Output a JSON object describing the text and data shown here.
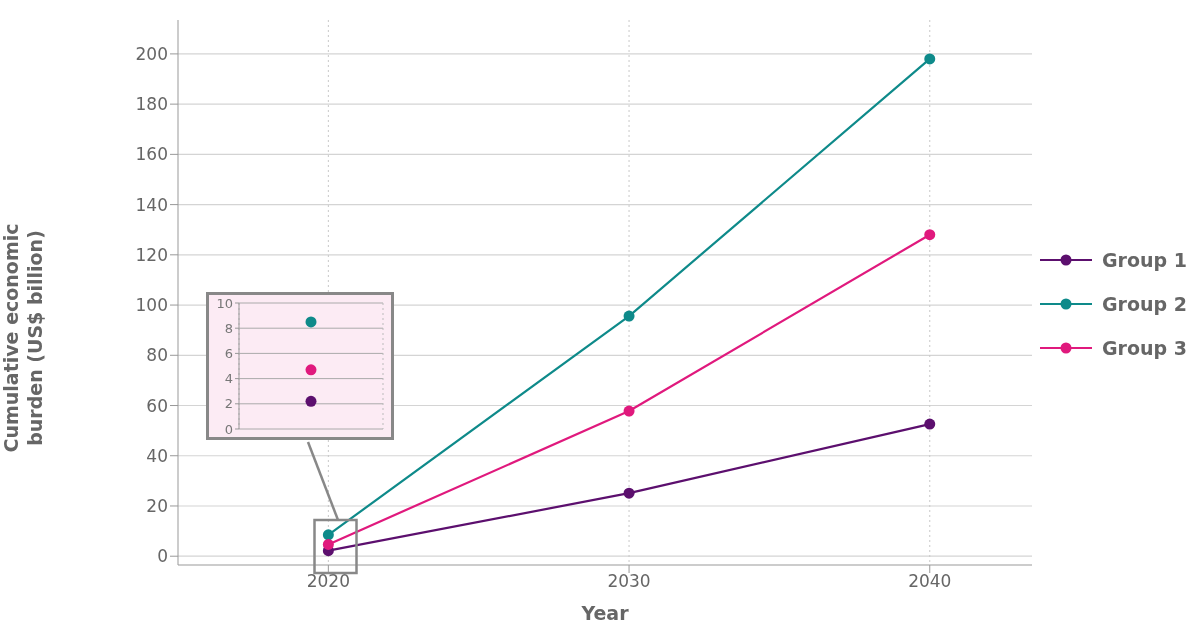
{
  "chart_data": [
    {
      "type": "line",
      "xlabel": "Year",
      "ylabel": "Cumulative economic burden (US$ billion)",
      "x": [
        2020,
        2030,
        2040
      ],
      "xlim": [
        2015,
        2043.4
      ],
      "xticks": [
        2020,
        2030,
        2040
      ],
      "ylim": [
        -3.5,
        213.5
      ],
      "yticks": [
        0,
        20,
        40,
        60,
        80,
        100,
        120,
        140,
        160,
        180,
        200
      ],
      "grid": true,
      "legend": "right",
      "marker": "circle",
      "line_style": "solid",
      "series": [
        {
          "name": "Group 1",
          "color": "#5c0f6e",
          "values": [
            2.2,
            25.1,
            52.6
          ]
        },
        {
          "name": "Group 2",
          "color": "#0e8a8a",
          "values": [
            8.5,
            95.6,
            198
          ]
        },
        {
          "name": "Group 3",
          "color": "#e0197d",
          "values": [
            4.7,
            57.8,
            128
          ]
        }
      ]
    },
    {
      "type": "scatter",
      "categories": [
        null
      ],
      "ylim": [
        0,
        10
      ],
      "yticks": [
        0,
        2,
        4,
        6,
        8,
        10
      ],
      "grid": true,
      "tick_labels": "y",
      "marker": "circle",
      "series": [
        {
          "color": "#5c0f6e",
          "values": [
            2.2
          ]
        },
        {
          "color": "#0e8a8a",
          "values": [
            8.5
          ]
        },
        {
          "color": "#e0197d",
          "values": [
            4.7
          ]
        }
      ]
    }
  ]
}
